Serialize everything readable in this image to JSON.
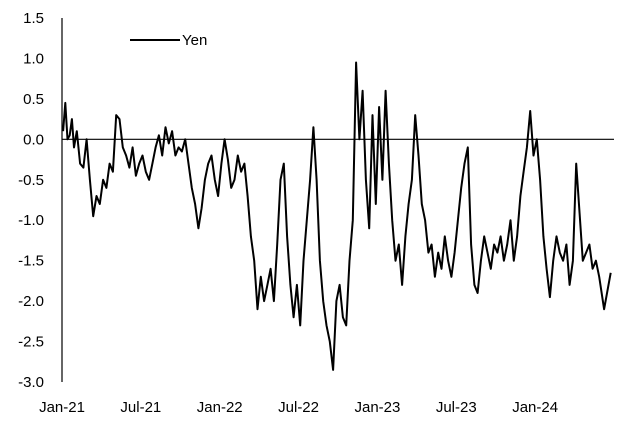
{
  "chart_data": {
    "type": "line",
    "title": "",
    "xlabel": "",
    "ylabel": "",
    "ylim": [
      -3.0,
      1.5
    ],
    "yticks": [
      "1.5",
      "1.0",
      "0.5",
      "0.0",
      "-0.5",
      "-1.0",
      "-1.5",
      "-2.0",
      "-2.5",
      "-3.0"
    ],
    "xticks": [
      "Jan-21",
      "Jul-21",
      "Jan-22",
      "Jul-22",
      "Jan-23",
      "Jul-23",
      "Jan-24"
    ],
    "xlim": [
      "2021-01",
      "2024-06"
    ],
    "zero_line": true,
    "grid": false,
    "legend_position": "top-left",
    "series": [
      {
        "name": "Yen",
        "color": "#000000",
        "points": [
          [
            "2021-01",
            0.1
          ],
          [
            "2021-01",
            0.45
          ],
          [
            "2021-01",
            0.0
          ],
          [
            "2021-01",
            0.05
          ],
          [
            "2021-01",
            0.25
          ],
          [
            "2021-01",
            -0.1
          ],
          [
            "2021-02",
            0.1
          ],
          [
            "2021-02",
            -0.3
          ],
          [
            "2021-02",
            -0.35
          ],
          [
            "2021-02",
            0.0
          ],
          [
            "2021-03",
            -0.5
          ],
          [
            "2021-03",
            -0.95
          ],
          [
            "2021-03",
            -0.7
          ],
          [
            "2021-03",
            -0.8
          ],
          [
            "2021-04",
            -0.5
          ],
          [
            "2021-04",
            -0.6
          ],
          [
            "2021-04",
            -0.3
          ],
          [
            "2021-04",
            -0.4
          ],
          [
            "2021-05",
            0.3
          ],
          [
            "2021-05",
            0.25
          ],
          [
            "2021-05",
            -0.1
          ],
          [
            "2021-05",
            -0.2
          ],
          [
            "2021-06",
            -0.35
          ],
          [
            "2021-06",
            -0.1
          ],
          [
            "2021-06",
            -0.45
          ],
          [
            "2021-06",
            -0.3
          ],
          [
            "2021-07",
            -0.2
          ],
          [
            "2021-07",
            -0.4
          ],
          [
            "2021-07",
            -0.5
          ],
          [
            "2021-07",
            -0.3
          ],
          [
            "2021-08",
            -0.1
          ],
          [
            "2021-08",
            0.05
          ],
          [
            "2021-08",
            -0.2
          ],
          [
            "2021-08",
            0.15
          ],
          [
            "2021-09",
            -0.05
          ],
          [
            "2021-09",
            0.1
          ],
          [
            "2021-09",
            -0.2
          ],
          [
            "2021-09",
            -0.1
          ],
          [
            "2021-10",
            -0.15
          ],
          [
            "2021-10",
            0.0
          ],
          [
            "2021-10",
            -0.3
          ],
          [
            "2021-10",
            -0.6
          ],
          [
            "2021-11",
            -0.8
          ],
          [
            "2021-11",
            -1.1
          ],
          [
            "2021-11",
            -0.85
          ],
          [
            "2021-11",
            -0.5
          ],
          [
            "2021-12",
            -0.3
          ],
          [
            "2021-12",
            -0.2
          ],
          [
            "2021-12",
            -0.5
          ],
          [
            "2021-12",
            -0.7
          ],
          [
            "2022-01",
            -0.3
          ],
          [
            "2022-01",
            0.0
          ],
          [
            "2022-01",
            -0.25
          ],
          [
            "2022-01",
            -0.6
          ],
          [
            "2022-02",
            -0.5
          ],
          [
            "2022-02",
            -0.2
          ],
          [
            "2022-02",
            -0.4
          ],
          [
            "2022-02",
            -0.3
          ],
          [
            "2022-03",
            -0.7
          ],
          [
            "2022-03",
            -1.2
          ],
          [
            "2022-03",
            -1.5
          ],
          [
            "2022-03",
            -2.1
          ],
          [
            "2022-04",
            -1.7
          ],
          [
            "2022-04",
            -2.0
          ],
          [
            "2022-04",
            -1.8
          ],
          [
            "2022-04",
            -1.6
          ],
          [
            "2022-05",
            -2.0
          ],
          [
            "2022-05",
            -1.3
          ],
          [
            "2022-05",
            -0.5
          ],
          [
            "2022-05",
            -0.3
          ],
          [
            "2022-06",
            -1.2
          ],
          [
            "2022-06",
            -1.8
          ],
          [
            "2022-06",
            -2.2
          ],
          [
            "2022-06",
            -1.8
          ],
          [
            "2022-07",
            -2.3
          ],
          [
            "2022-07",
            -1.5
          ],
          [
            "2022-07",
            -1.0
          ],
          [
            "2022-07",
            -0.5
          ],
          [
            "2022-08",
            0.15
          ],
          [
            "2022-08",
            -0.5
          ],
          [
            "2022-08",
            -1.5
          ],
          [
            "2022-08",
            -2.0
          ],
          [
            "2022-09",
            -2.3
          ],
          [
            "2022-09",
            -2.5
          ],
          [
            "2022-09",
            -2.85
          ],
          [
            "2022-09",
            -2.0
          ],
          [
            "2022-10",
            -1.8
          ],
          [
            "2022-10",
            -2.2
          ],
          [
            "2022-10",
            -2.3
          ],
          [
            "2022-10",
            -1.5
          ],
          [
            "2022-11",
            -1.0
          ],
          [
            "2022-11",
            0.95
          ],
          [
            "2022-11",
            0.0
          ],
          [
            "2022-11",
            0.6
          ],
          [
            "2022-12",
            -0.5
          ],
          [
            "2022-12",
            -1.1
          ],
          [
            "2022-12",
            0.3
          ],
          [
            "2022-12",
            -0.8
          ],
          [
            "2023-01",
            0.4
          ],
          [
            "2023-01",
            -0.5
          ],
          [
            "2023-01",
            0.6
          ],
          [
            "2023-01",
            -0.3
          ],
          [
            "2023-02",
            -1.0
          ],
          [
            "2023-02",
            -1.5
          ],
          [
            "2023-02",
            -1.3
          ],
          [
            "2023-02",
            -1.8
          ],
          [
            "2023-03",
            -1.2
          ],
          [
            "2023-03",
            -0.8
          ],
          [
            "2023-03",
            -0.5
          ],
          [
            "2023-03",
            0.3
          ],
          [
            "2023-04",
            -0.2
          ],
          [
            "2023-04",
            -0.8
          ],
          [
            "2023-04",
            -1.0
          ],
          [
            "2023-04",
            -1.4
          ],
          [
            "2023-05",
            -1.3
          ],
          [
            "2023-05",
            -1.7
          ],
          [
            "2023-05",
            -1.4
          ],
          [
            "2023-05",
            -1.6
          ],
          [
            "2023-06",
            -1.2
          ],
          [
            "2023-06",
            -1.5
          ],
          [
            "2023-06",
            -1.7
          ],
          [
            "2023-06",
            -1.4
          ],
          [
            "2023-07",
            -1.0
          ],
          [
            "2023-07",
            -0.6
          ],
          [
            "2023-07",
            -0.3
          ],
          [
            "2023-07",
            -0.1
          ],
          [
            "2023-08",
            -1.3
          ],
          [
            "2023-08",
            -1.8
          ],
          [
            "2023-08",
            -1.9
          ],
          [
            "2023-08",
            -1.5
          ],
          [
            "2023-09",
            -1.2
          ],
          [
            "2023-09",
            -1.4
          ],
          [
            "2023-09",
            -1.6
          ],
          [
            "2023-09",
            -1.3
          ],
          [
            "2023-10",
            -1.4
          ],
          [
            "2023-10",
            -1.2
          ],
          [
            "2023-10",
            -1.5
          ],
          [
            "2023-10",
            -1.3
          ],
          [
            "2023-11",
            -1.0
          ],
          [
            "2023-11",
            -1.5
          ],
          [
            "2023-11",
            -1.2
          ],
          [
            "2023-11",
            -0.7
          ],
          [
            "2023-12",
            -0.4
          ],
          [
            "2023-12",
            -0.1
          ],
          [
            "2023-12",
            0.35
          ],
          [
            "2023-12",
            -0.2
          ],
          [
            "2024-01",
            0.0
          ],
          [
            "2024-01",
            -0.5
          ],
          [
            "2024-01",
            -1.2
          ],
          [
            "2024-01",
            -1.6
          ],
          [
            "2024-02",
            -1.95
          ],
          [
            "2024-02",
            -1.5
          ],
          [
            "2024-02",
            -1.2
          ],
          [
            "2024-02",
            -1.4
          ],
          [
            "2024-03",
            -1.5
          ],
          [
            "2024-03",
            -1.3
          ],
          [
            "2024-03",
            -1.8
          ],
          [
            "2024-03",
            -1.5
          ],
          [
            "2024-04",
            -0.3
          ],
          [
            "2024-04",
            -0.9
          ],
          [
            "2024-04",
            -1.5
          ],
          [
            "2024-04",
            -1.4
          ],
          [
            "2024-05",
            -1.3
          ],
          [
            "2024-05",
            -1.6
          ],
          [
            "2024-05",
            -1.5
          ],
          [
            "2024-05",
            -1.7
          ],
          [
            "2024-06",
            -2.1
          ],
          [
            "2024-06",
            -1.65
          ]
        ]
      }
    ]
  }
}
